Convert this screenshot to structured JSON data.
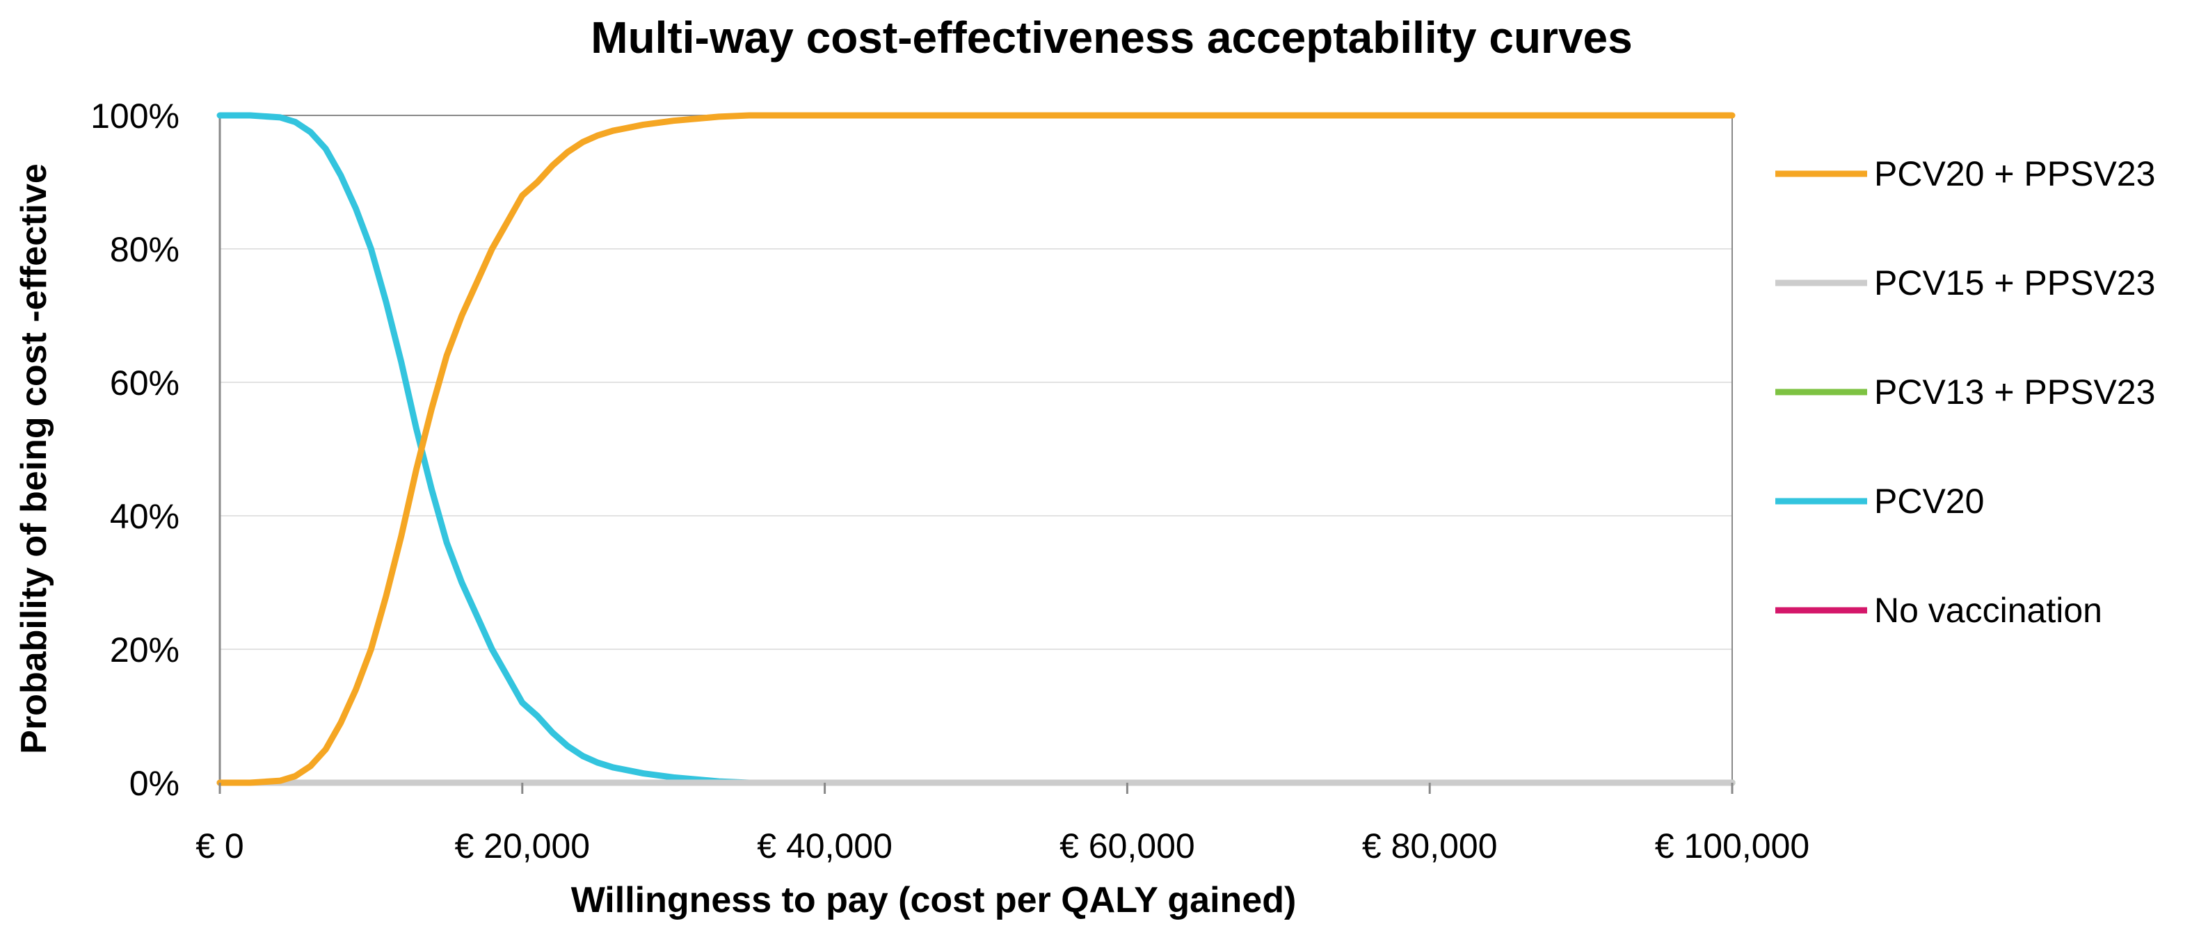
{
  "chart_data": {
    "type": "line",
    "title": "Multi-way cost-effectiveness acceptability curves",
    "xlabel": "Willingness to pay (cost per QALY gained)",
    "ylabel": "Probability of being cost  -effective",
    "xlim": [
      0,
      100000
    ],
    "ylim": [
      0,
      100
    ],
    "x_ticks": [
      0,
      20000,
      40000,
      60000,
      80000,
      100000
    ],
    "x_tick_labels": [
      "€ 0",
      "€ 20,000",
      "€ 40,000",
      "€ 60,000",
      "€ 80,000",
      "€ 100,000"
    ],
    "y_ticks": [
      0,
      20,
      40,
      60,
      80,
      100
    ],
    "y_tick_labels": [
      "0%",
      "20%",
      "40%",
      "60%",
      "80%",
      "100%"
    ],
    "grid": true,
    "legend_position": "right",
    "series": [
      {
        "name": "PCV20 + PPSV23",
        "color": "#F5A623",
        "x": [
          0,
          2000,
          4000,
          5000,
          6000,
          7000,
          8000,
          9000,
          10000,
          11000,
          12000,
          13000,
          14000,
          15000,
          16000,
          17000,
          18000,
          19000,
          20000,
          21000,
          22000,
          23000,
          24000,
          25000,
          26000,
          28000,
          30000,
          33000,
          35000,
          40000,
          60000,
          80000,
          100000
        ],
        "values": [
          0,
          0,
          0.3,
          1,
          2.5,
          5,
          9,
          14,
          20,
          28,
          37,
          47,
          56,
          64,
          70,
          75,
          80,
          84,
          88,
          90,
          92.5,
          94.5,
          96,
          97,
          97.7,
          98.6,
          99.2,
          99.8,
          100,
          100,
          100,
          100,
          100
        ]
      },
      {
        "name": "PCV15 + PPSV23",
        "color": "#CCCCCC",
        "x": [
          0,
          100000
        ],
        "values": [
          0,
          0
        ]
      },
      {
        "name": "PCV13 + PPSV23",
        "color": "#7DC242",
        "x": [
          0,
          100000
        ],
        "values": [
          0,
          0
        ]
      },
      {
        "name": "PCV20",
        "color": "#33C4DE",
        "x": [
          0,
          2000,
          4000,
          5000,
          6000,
          7000,
          8000,
          9000,
          10000,
          11000,
          12000,
          13000,
          14000,
          15000,
          16000,
          17000,
          18000,
          19000,
          20000,
          21000,
          22000,
          23000,
          24000,
          25000,
          26000,
          28000,
          30000,
          33000,
          35000,
          40000,
          60000,
          80000,
          100000
        ],
        "values": [
          100,
          100,
          99.7,
          99,
          97.5,
          95,
          91,
          86,
          80,
          72,
          63,
          53,
          44,
          36,
          30,
          25,
          20,
          16,
          12,
          10,
          7.5,
          5.5,
          4,
          3,
          2.3,
          1.4,
          0.8,
          0.2,
          0,
          0,
          0,
          0,
          0
        ]
      },
      {
        "name": "No vaccination",
        "color": "#D4176A",
        "x": [
          0,
          100000
        ],
        "values": [
          0,
          0
        ]
      }
    ]
  }
}
